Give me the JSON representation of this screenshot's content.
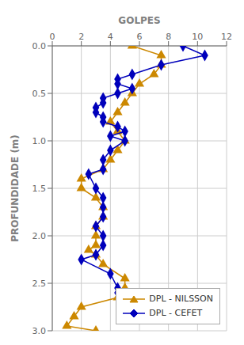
{
  "chart_data": {
    "type": "line",
    "xlabel": "GOLPES",
    "ylabel": "PROFUNDIDADE (m)",
    "xlim": [
      0,
      12
    ],
    "ylim": [
      3.0,
      0.0
    ],
    "xticks": [
      0,
      2,
      4,
      6,
      8,
      10,
      12
    ],
    "yticks": [
      {
        "value": 0.0,
        "label": "0.0"
      },
      0.5,
      {
        "value": 1.0,
        "label": "1.0"
      },
      1.5,
      {
        "value": 2.0,
        "label": "2.0"
      },
      2.5,
      {
        "value": 3.0,
        "label": "3.0"
      }
    ],
    "grid": true,
    "legend": "lower right",
    "series": [
      {
        "name": "DPL - NILSSON",
        "color": "#cc8800",
        "marker": "triangle",
        "x": [
          5.5,
          7.5,
          7.5,
          7.0,
          6.0,
          5.5,
          5.0,
          4.5,
          4.0,
          4.5,
          5.0,
          4.5,
          4.0,
          3.5,
          2.0,
          2.0,
          3.0,
          3.5,
          3.5,
          3.0,
          3.0,
          3.0,
          2.5,
          3.0,
          3.5,
          5.0,
          5.0,
          4.5,
          2.0,
          1.5,
          1.0,
          3.0
        ],
        "values": [
          0.0,
          0.1,
          0.2,
          0.3,
          0.4,
          0.5,
          0.6,
          0.7,
          0.8,
          0.9,
          1.0,
          1.1,
          1.2,
          1.3,
          1.4,
          1.5,
          1.6,
          1.7,
          1.8,
          1.9,
          2.0,
          2.1,
          2.15,
          2.2,
          2.3,
          2.45,
          2.55,
          2.65,
          2.75,
          2.85,
          2.95,
          3.0
        ]
      },
      {
        "name": "DPL - CEFET",
        "color": "#0000bb",
        "marker": "diamond",
        "x": [
          9.0,
          10.5,
          7.5,
          5.5,
          4.5,
          4.5,
          5.5,
          4.5,
          3.5,
          3.5,
          3.0,
          3.0,
          3.5,
          3.5,
          4.5,
          5.0,
          4.0,
          5.0,
          4.0,
          3.5,
          3.5,
          2.5,
          3.0,
          3.5,
          3.5,
          3.5,
          3.0,
          3.5,
          3.5,
          3.0,
          2.0,
          4.0,
          4.5,
          4.5
        ],
        "values": [
          0.0,
          0.1,
          0.2,
          0.3,
          0.35,
          0.4,
          0.45,
          0.5,
          0.55,
          0.6,
          0.65,
          0.7,
          0.75,
          0.8,
          0.85,
          0.9,
          0.95,
          1.0,
          1.1,
          1.2,
          1.3,
          1.35,
          1.5,
          1.6,
          1.7,
          1.8,
          1.9,
          2.0,
          2.1,
          2.2,
          2.25,
          2.4,
          2.55,
          2.6
        ]
      }
    ]
  }
}
